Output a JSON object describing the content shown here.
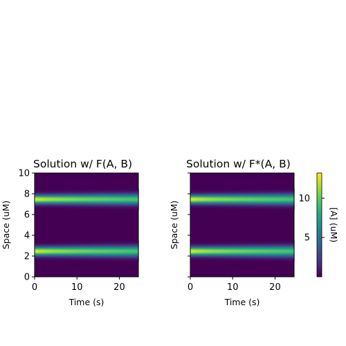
{
  "chart_data": [
    {
      "type": "heatmap",
      "title": "Solution w/ F(A, B)",
      "xlabel": "Time (s)",
      "ylabel": "Space (uM)",
      "xlim": [
        0,
        24.5
      ],
      "ylim": [
        0,
        10
      ],
      "xticks": [
        0,
        10,
        20
      ],
      "yticks": [
        0,
        2,
        4,
        6,
        8,
        10
      ],
      "show_ytick_labels": true,
      "bands": [
        {
          "center": 7.5,
          "peak_start": 13.2,
          "peak_end": 9.4
        },
        {
          "center": 2.5,
          "peak_start": 13.2,
          "peak_end": 9.4
        }
      ]
    },
    {
      "type": "heatmap",
      "title": "Solution w/ F*(A, B)",
      "xlabel": "Time (s)",
      "ylabel": "Space (uM)",
      "xlim": [
        0,
        24.5
      ],
      "ylim": [
        0,
        10
      ],
      "xticks": [
        0,
        10,
        20
      ],
      "yticks": [
        0,
        2,
        4,
        6,
        8,
        10
      ],
      "show_ytick_labels": false,
      "bands": [
        {
          "center": 7.5,
          "peak_start": 13.2,
          "peak_end": 9.4
        },
        {
          "center": 2.5,
          "peak_start": 13.2,
          "peak_end": 9.4
        }
      ]
    }
  ],
  "colorbar": {
    "label": "[A] (uM)",
    "range": [
      0,
      13.2
    ],
    "ticks": [
      5,
      10
    ],
    "colormap": "viridis"
  },
  "colors": {
    "background": "#440154",
    "peak": "#fde725"
  }
}
